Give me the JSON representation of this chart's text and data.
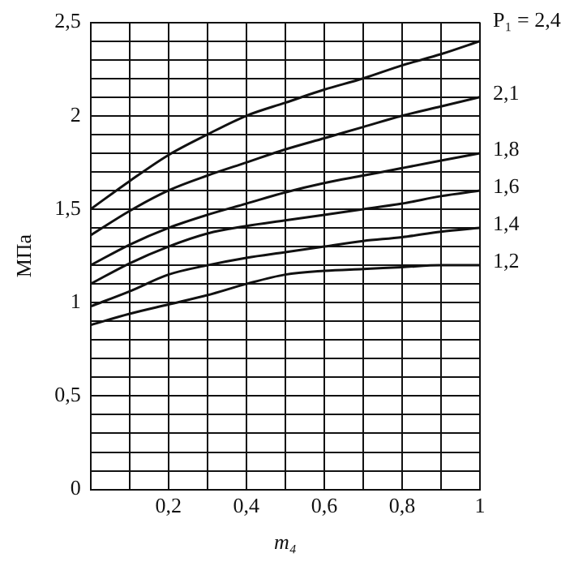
{
  "chart_data": {
    "type": "line",
    "xlabel": "m₄",
    "ylabel": "МПа",
    "x": [
      0,
      0.1,
      0.2,
      0.3,
      0.4,
      0.5,
      0.6,
      0.7,
      0.8,
      0.9,
      1
    ],
    "series": [
      {
        "name": "P₁ = 2,4",
        "color": "#111111",
        "values": [
          1.5,
          1.65,
          1.79,
          1.9,
          2.0,
          2.07,
          2.14,
          2.2,
          2.27,
          2.33,
          2.4
        ]
      },
      {
        "name": "2,1",
        "color": "#111111",
        "values": [
          1.36,
          1.49,
          1.6,
          1.68,
          1.75,
          1.82,
          1.88,
          1.94,
          2.0,
          2.05,
          2.1
        ]
      },
      {
        "name": "1,8",
        "color": "#111111",
        "values": [
          1.2,
          1.31,
          1.4,
          1.47,
          1.53,
          1.59,
          1.64,
          1.68,
          1.72,
          1.76,
          1.8
        ]
      },
      {
        "name": "1,6",
        "color": "#111111",
        "values": [
          1.1,
          1.21,
          1.3,
          1.37,
          1.41,
          1.44,
          1.47,
          1.5,
          1.53,
          1.57,
          1.6
        ]
      },
      {
        "name": "1,4",
        "color": "#111111",
        "values": [
          0.98,
          1.06,
          1.15,
          1.2,
          1.24,
          1.27,
          1.3,
          1.33,
          1.35,
          1.38,
          1.4
        ]
      },
      {
        "name": "1,2",
        "color": "#111111",
        "values": [
          0.88,
          0.94,
          0.99,
          1.04,
          1.1,
          1.15,
          1.17,
          1.18,
          1.19,
          1.2,
          1.2
        ]
      }
    ],
    "xlim": [
      0,
      1
    ],
    "xticks": [
      {
        "value": 0,
        "label": null
      },
      {
        "value": 0.1,
        "label": null
      },
      {
        "value": 0.2,
        "label": "0,2"
      },
      {
        "value": 0.3,
        "label": null
      },
      {
        "value": 0.4,
        "label": "0,4"
      },
      {
        "value": 0.5,
        "label": null
      },
      {
        "value": 0.6,
        "label": "0,6"
      },
      {
        "value": 0.7,
        "label": null
      },
      {
        "value": 0.8,
        "label": "0,8"
      },
      {
        "value": 0.9,
        "label": null
      },
      1
    ],
    "ylim": [
      0,
      2.5
    ],
    "yticks": [
      0,
      {
        "value": 0.1,
        "label": null
      },
      {
        "value": 0.2,
        "label": null
      },
      {
        "value": 0.3,
        "label": null
      },
      {
        "value": 0.4,
        "label": null
      },
      {
        "value": 0.5,
        "label": "0,5"
      },
      {
        "value": 0.6,
        "label": null
      },
      {
        "value": 0.7,
        "label": null
      },
      {
        "value": 0.8,
        "label": null
      },
      {
        "value": 0.9,
        "label": null
      },
      1,
      {
        "value": 1.1,
        "label": null
      },
      {
        "value": 1.2,
        "label": null
      },
      {
        "value": 1.3,
        "label": null
      },
      {
        "value": 1.4,
        "label": null
      },
      {
        "value": 1.5,
        "label": "1,5"
      },
      {
        "value": 1.6,
        "label": null
      },
      {
        "value": 1.7,
        "label": null
      },
      {
        "value": 1.8,
        "label": null
      },
      {
        "value": 1.9,
        "label": null
      },
      2,
      {
        "value": 2.1,
        "label": null
      },
      {
        "value": 2.2,
        "label": null
      },
      {
        "value": 2.3,
        "label": null
      },
      {
        "value": 2.4,
        "label": null
      },
      {
        "value": 2.5,
        "label": "2,5"
      }
    ],
    "grid": true,
    "legend": false,
    "marker": "none",
    "line_style": "solid"
  }
}
